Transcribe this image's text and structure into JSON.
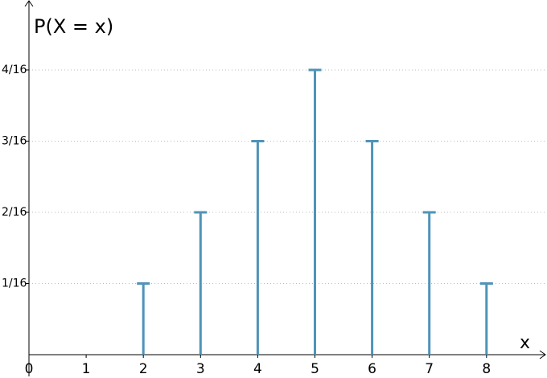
{
  "chart_data": {
    "type": "stem",
    "y_axis_label": "P(X = x)",
    "x_axis_label": "x",
    "x": [
      2,
      3,
      4,
      5,
      6,
      7,
      8
    ],
    "values": [
      0.0625,
      0.125,
      0.1875,
      0.25,
      0.1875,
      0.125,
      0.0625
    ],
    "color": "#4f93b8",
    "xlim": [
      0,
      9.1
    ],
    "xticks": [
      0,
      1,
      2,
      3,
      4,
      5,
      6,
      7,
      8
    ],
    "ylim": [
      0,
      0.31
    ],
    "yticks": [
      {
        "value": 0.0625,
        "label": "1/16"
      },
      {
        "value": 0.125,
        "label": "2/16"
      },
      {
        "value": 0.1875,
        "label": "3/16"
      },
      {
        "value": 0.25,
        "label": "4/16"
      }
    ],
    "grid": true
  }
}
